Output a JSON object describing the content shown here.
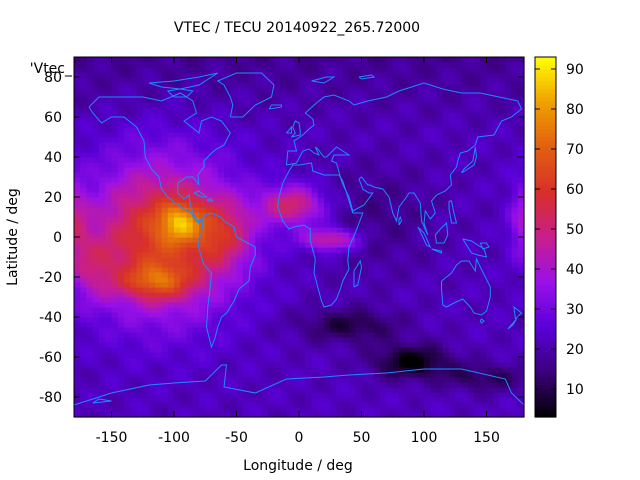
{
  "chart_data": {
    "type": "heatmap",
    "title": "VTEC / TECU 20140922_265.72000",
    "xlabel": "Longitude / deg",
    "ylabel": "Latitude / deg",
    "key_label": "'Vtec_",
    "xlim": [
      -180,
      180
    ],
    "ylim": [
      -90,
      90
    ],
    "xticks": [
      -150,
      -100,
      -50,
      0,
      50,
      100,
      150
    ],
    "yticks": [
      -80,
      -60,
      -40,
      -20,
      0,
      20,
      40,
      60,
      80
    ],
    "colorbar": {
      "min": 3,
      "max": 93,
      "ticks": [
        10,
        20,
        30,
        40,
        50,
        60,
        70,
        80,
        90
      ]
    },
    "palette": [
      "#000000",
      "#3a007a",
      "#5a00d8",
      "#9a10e8",
      "#c81e8c",
      "#d82f2a",
      "#e06010",
      "#f0a000",
      "#ffff00"
    ],
    "coastline_color": "#1a8cff",
    "grid": false,
    "vtec_features": {
      "background": 22,
      "lon_resolution_deg": 5,
      "lat_resolution_deg": 2.5,
      "peaks": [
        {
          "lon": -95,
          "lat": 8,
          "value": 90
        },
        {
          "lon": -110,
          "lat": -20,
          "value": 82
        },
        {
          "lon": -60,
          "lat": 2,
          "value": 70
        },
        {
          "lon": 0,
          "lat": 18,
          "value": 55
        },
        {
          "lon": 25,
          "lat": -1,
          "value": 54
        },
        {
          "lon": 178,
          "lat": 8,
          "value": 40
        }
      ],
      "minima": [
        {
          "lon": 90,
          "lat": -62,
          "value": 5
        },
        {
          "lon": 30,
          "lat": -45,
          "value": 9
        },
        {
          "lon": 150,
          "lat": -70,
          "value": 10
        }
      ]
    }
  }
}
